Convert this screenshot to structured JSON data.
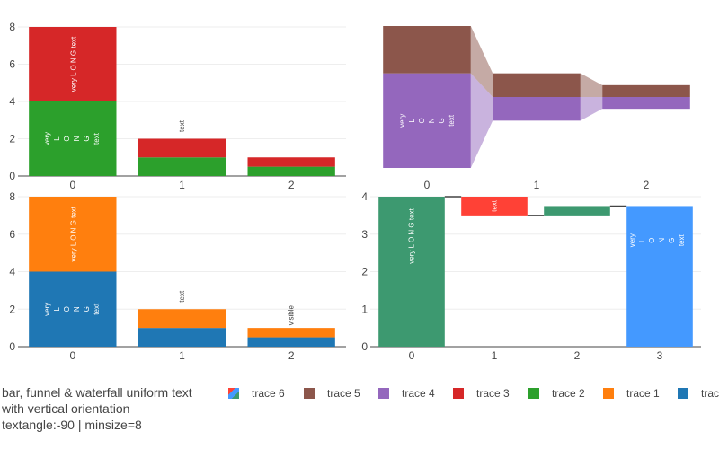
{
  "title_lines": [
    "bar, funnel & waterfall uniform text",
    "with vertical orientation",
    "textangle:-90 | minsize=8"
  ],
  "legend": [
    {
      "name": "trace 6",
      "color": "#2ca02c",
      "swatch": "waterfall"
    },
    {
      "name": "trace 5",
      "color": "#8c564b"
    },
    {
      "name": "trace 4",
      "color": "#9467bd"
    },
    {
      "name": "trace 3",
      "color": "#d62728"
    },
    {
      "name": "trace 2",
      "color": "#2ca02c"
    },
    {
      "name": "trace 1",
      "color": "#ff7f0e"
    },
    {
      "name": "trac",
      "color": "#1f77b4"
    }
  ],
  "chart_data": [
    {
      "type": "bar",
      "panel": "top-left",
      "barmode": "stack",
      "categories": [
        "0",
        "1",
        "2"
      ],
      "ylim": [
        0,
        8
      ],
      "yticks": [
        0,
        2,
        4,
        6,
        8
      ],
      "series": [
        {
          "name": "trace 2",
          "color": "#2ca02c",
          "values": [
            4,
            1,
            0.5
          ],
          "text": [
            "very L O N G text",
            "text",
            ""
          ]
        },
        {
          "name": "trace 3",
          "color": "#d62728",
          "values": [
            4,
            1,
            0.5
          ],
          "text": [
            "very L O N G text",
            "text",
            ""
          ]
        }
      ]
    },
    {
      "type": "funnel",
      "panel": "top-right",
      "categories": [
        "0",
        "1",
        "2"
      ],
      "series": [
        {
          "name": "trace 4",
          "color": "#9467bd",
          "values": [
            4,
            1,
            0.5
          ],
          "text": [
            "very L O N G text",
            "",
            ""
          ]
        },
        {
          "name": "trace 5",
          "color": "#8c564b",
          "values": [
            2,
            1,
            0.5
          ],
          "text": [
            "",
            "",
            ""
          ]
        }
      ]
    },
    {
      "type": "bar",
      "panel": "bottom-left",
      "barmode": "stack",
      "categories": [
        "0",
        "1",
        "2"
      ],
      "ylim": [
        0,
        8
      ],
      "yticks": [
        0,
        2,
        4,
        6,
        8
      ],
      "series": [
        {
          "name": "trac",
          "color": "#1f77b4",
          "values": [
            4,
            1,
            0.5
          ],
          "text": [
            "very L O N G text",
            "text",
            ""
          ]
        },
        {
          "name": "trace 1",
          "color": "#ff7f0e",
          "values": [
            4,
            1,
            0.5
          ],
          "text": [
            "very L O N G text",
            "text",
            "visible"
          ]
        }
      ]
    },
    {
      "type": "waterfall",
      "panel": "bottom-right",
      "name": "trace 6",
      "categories": [
        "0",
        "1",
        "2",
        "3"
      ],
      "measures": [
        "relative",
        "relative",
        "relative",
        "total"
      ],
      "values": [
        4,
        -0.5,
        0.25,
        3.75
      ],
      "ylim": [
        0,
        4
      ],
      "yticks": [
        0,
        1,
        2,
        3,
        4
      ],
      "colors": {
        "increasing": "#3d9970",
        "decreasing": "#ff4136",
        "total": "#4499ff"
      },
      "text": [
        "very L O N G text",
        "text",
        "",
        "very L O N G text"
      ]
    }
  ]
}
